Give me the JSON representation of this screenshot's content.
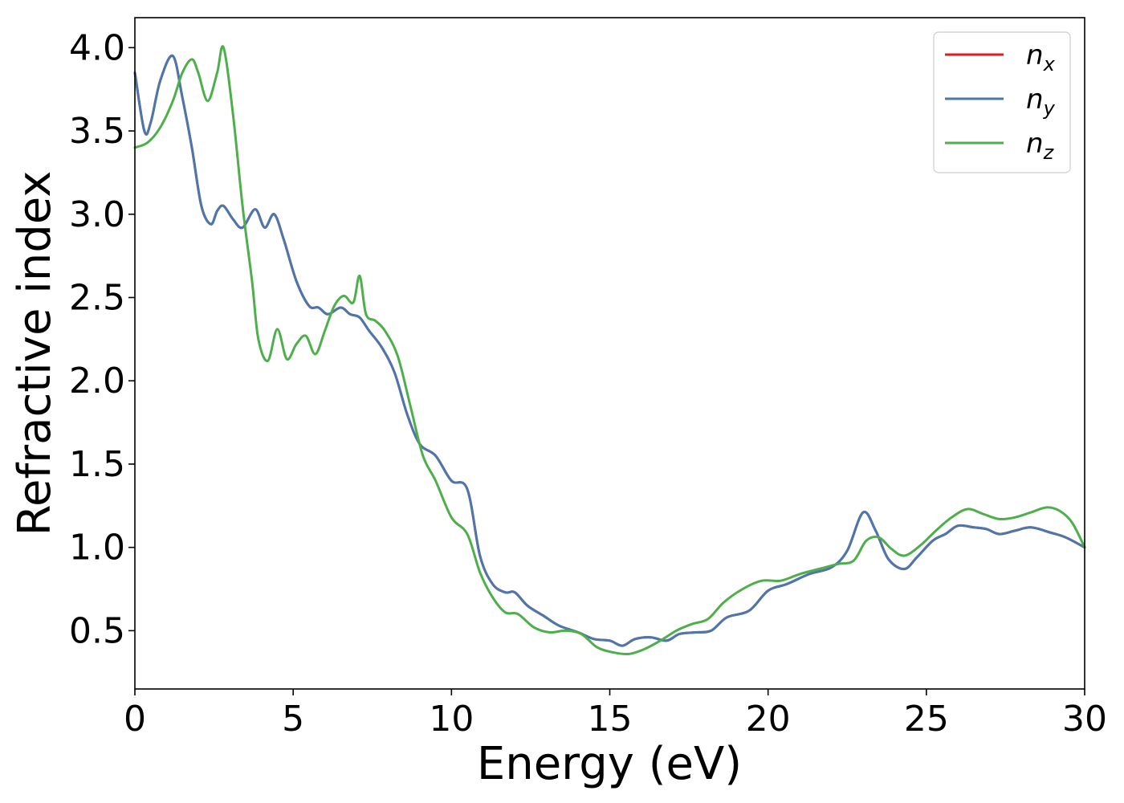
{
  "chart_data": {
    "type": "line",
    "title": "",
    "xlabel": "Energy (eV)",
    "ylabel": "Refractive index",
    "xlim": [
      0,
      30
    ],
    "ylim": [
      0.15,
      4.18
    ],
    "xticks": [
      0,
      5,
      10,
      15,
      20,
      25,
      30
    ],
    "xtick_labels": [
      "0",
      "5",
      "10",
      "15",
      "20",
      "25",
      "30"
    ],
    "yticks": [
      0.5,
      1.0,
      1.5,
      2.0,
      2.5,
      3.0,
      3.5,
      4.0
    ],
    "ytick_labels": [
      "0.5",
      "1.0",
      "1.5",
      "2.0",
      "2.5",
      "3.0",
      "3.5",
      "4.0"
    ],
    "grid": false,
    "legend_position": "top-right",
    "colors": {
      "n_x": "#e41a1c",
      "n_y": "#4a77ad",
      "n_z": "#4daf4a"
    },
    "series": [
      {
        "name": "n_x",
        "legend_base": "n",
        "legend_sub": "x",
        "color": "#e41a1c",
        "x": [
          0,
          0.3,
          0.5,
          0.8,
          1.2,
          1.5,
          1.8,
          2.1,
          2.4,
          2.6,
          2.8,
          3.1,
          3.4,
          3.8,
          4.1,
          4.4,
          4.7,
          5.1,
          5.5,
          5.8,
          6.1,
          6.5,
          6.8,
          7.1,
          7.4,
          7.8,
          8.2,
          8.6,
          9.0,
          9.5,
          10.0,
          10.5,
          10.9,
          11.3,
          11.7,
          12.0,
          12.4,
          12.9,
          13.4,
          14.0,
          14.5,
          15.0,
          15.4,
          15.8,
          16.3,
          16.8,
          17.2,
          17.7,
          18.2,
          18.7,
          19.4,
          20.0,
          20.6,
          21.3,
          22.0,
          22.5,
          23.0,
          23.4,
          23.8,
          24.3,
          24.7,
          25.2,
          25.6,
          26.0,
          26.5,
          26.9,
          27.3,
          27.8,
          28.3,
          28.9,
          29.4,
          30.0
        ],
        "y": [
          3.85,
          3.5,
          3.55,
          3.8,
          3.95,
          3.7,
          3.4,
          3.05,
          2.94,
          3.02,
          3.05,
          2.97,
          2.92,
          3.03,
          2.92,
          3.0,
          2.85,
          2.6,
          2.45,
          2.44,
          2.4,
          2.44,
          2.4,
          2.38,
          2.3,
          2.2,
          2.05,
          1.8,
          1.62,
          1.55,
          1.4,
          1.35,
          0.95,
          0.78,
          0.73,
          0.73,
          0.65,
          0.59,
          0.53,
          0.49,
          0.45,
          0.44,
          0.41,
          0.45,
          0.46,
          0.44,
          0.48,
          0.49,
          0.5,
          0.58,
          0.62,
          0.74,
          0.78,
          0.84,
          0.88,
          0.98,
          1.21,
          1.1,
          0.93,
          0.87,
          0.94,
          1.04,
          1.08,
          1.13,
          1.12,
          1.11,
          1.08,
          1.1,
          1.12,
          1.09,
          1.06,
          1.0
        ]
      },
      {
        "name": "n_y",
        "legend_base": "n",
        "legend_sub": "y",
        "color": "#4a77ad",
        "x": [
          0,
          0.3,
          0.5,
          0.8,
          1.2,
          1.5,
          1.8,
          2.1,
          2.4,
          2.6,
          2.8,
          3.1,
          3.4,
          3.8,
          4.1,
          4.4,
          4.7,
          5.1,
          5.5,
          5.8,
          6.1,
          6.5,
          6.8,
          7.1,
          7.4,
          7.8,
          8.2,
          8.6,
          9.0,
          9.5,
          10.0,
          10.5,
          10.9,
          11.3,
          11.7,
          12.0,
          12.4,
          12.9,
          13.4,
          14.0,
          14.5,
          15.0,
          15.4,
          15.8,
          16.3,
          16.8,
          17.2,
          17.7,
          18.2,
          18.7,
          19.4,
          20.0,
          20.6,
          21.3,
          22.0,
          22.5,
          23.0,
          23.4,
          23.8,
          24.3,
          24.7,
          25.2,
          25.6,
          26.0,
          26.5,
          26.9,
          27.3,
          27.8,
          28.3,
          28.9,
          29.4,
          30.0
        ],
        "y": [
          3.85,
          3.5,
          3.55,
          3.8,
          3.95,
          3.7,
          3.4,
          3.05,
          2.94,
          3.02,
          3.05,
          2.97,
          2.92,
          3.03,
          2.92,
          3.0,
          2.85,
          2.6,
          2.45,
          2.44,
          2.4,
          2.44,
          2.4,
          2.38,
          2.3,
          2.2,
          2.05,
          1.8,
          1.62,
          1.55,
          1.4,
          1.35,
          0.95,
          0.78,
          0.73,
          0.73,
          0.65,
          0.59,
          0.53,
          0.49,
          0.45,
          0.44,
          0.41,
          0.45,
          0.46,
          0.44,
          0.48,
          0.49,
          0.5,
          0.58,
          0.62,
          0.74,
          0.78,
          0.84,
          0.88,
          0.98,
          1.21,
          1.1,
          0.93,
          0.87,
          0.94,
          1.04,
          1.08,
          1.13,
          1.12,
          1.11,
          1.08,
          1.1,
          1.12,
          1.09,
          1.06,
          1.0
        ]
      },
      {
        "name": "n_z",
        "legend_base": "n",
        "legend_sub": "z",
        "color": "#4daf4a",
        "x": [
          0,
          0.4,
          0.8,
          1.2,
          1.5,
          1.8,
          2.0,
          2.3,
          2.6,
          2.8,
          3.1,
          3.4,
          3.7,
          3.9,
          4.2,
          4.5,
          4.8,
          5.1,
          5.4,
          5.7,
          6.0,
          6.3,
          6.6,
          6.9,
          7.1,
          7.3,
          7.6,
          7.9,
          8.3,
          8.7,
          9.1,
          9.5,
          10.0,
          10.5,
          10.9,
          11.3,
          11.7,
          12.1,
          12.6,
          13.1,
          13.6,
          14.1,
          14.6,
          15.1,
          15.6,
          16.1,
          16.6,
          17.1,
          17.6,
          18.1,
          18.6,
          19.2,
          19.8,
          20.4,
          21.0,
          21.6,
          22.2,
          22.7,
          23.1,
          23.5,
          23.9,
          24.3,
          24.8,
          25.3,
          25.8,
          26.3,
          26.8,
          27.3,
          27.8,
          28.3,
          28.8,
          29.2,
          29.6,
          30.0
        ],
        "y": [
          3.4,
          3.43,
          3.52,
          3.68,
          3.85,
          3.93,
          3.85,
          3.68,
          3.85,
          4.0,
          3.6,
          3.05,
          2.6,
          2.25,
          2.12,
          2.31,
          2.13,
          2.22,
          2.27,
          2.16,
          2.3,
          2.45,
          2.51,
          2.47,
          2.63,
          2.4,
          2.36,
          2.3,
          2.15,
          1.85,
          1.55,
          1.4,
          1.18,
          1.08,
          0.85,
          0.7,
          0.61,
          0.6,
          0.52,
          0.49,
          0.5,
          0.48,
          0.4,
          0.37,
          0.36,
          0.39,
          0.44,
          0.5,
          0.54,
          0.57,
          0.67,
          0.75,
          0.8,
          0.8,
          0.84,
          0.87,
          0.9,
          0.92,
          1.04,
          1.06,
          0.99,
          0.95,
          1.01,
          1.1,
          1.18,
          1.23,
          1.2,
          1.17,
          1.18,
          1.21,
          1.24,
          1.22,
          1.15,
          1.0
        ]
      }
    ]
  }
}
